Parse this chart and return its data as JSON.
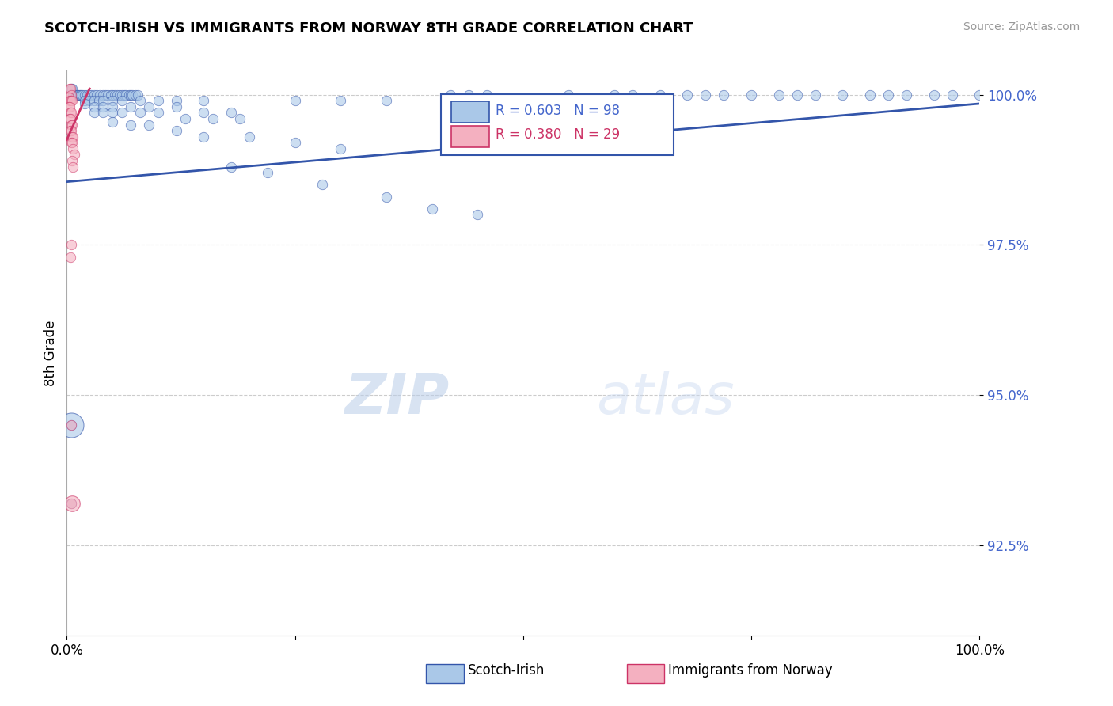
{
  "title": "SCOTCH-IRISH VS IMMIGRANTS FROM NORWAY 8TH GRADE CORRELATION CHART",
  "source_text": "Source: ZipAtlas.com",
  "ylabel": "8th Grade",
  "xlim": [
    0,
    1.0
  ],
  "ylim": [
    0.91,
    1.004
  ],
  "yticks": [
    0.925,
    0.95,
    0.975,
    1.0
  ],
  "ytick_labels": [
    "92.5%",
    "95.0%",
    "97.5%",
    "100.0%"
  ],
  "xticks": [
    0.0,
    0.25,
    0.5,
    0.75,
    1.0
  ],
  "xtick_labels": [
    "0.0%",
    "",
    "",
    "",
    "100.0%"
  ],
  "legend_blue_R": "0.603",
  "legend_blue_N": "98",
  "legend_pink_R": "0.380",
  "legend_pink_N": "29",
  "legend_label_blue": "Scotch-Irish",
  "legend_label_pink": "Immigrants from Norway",
  "blue_color": "#aac8e8",
  "pink_color": "#f4b0c0",
  "trend_blue": "#3355aa",
  "trend_pink": "#cc3366",
  "axis_color": "#4466cc",
  "grid_color": "#cccccc",
  "watermark_zip": "ZIP",
  "watermark_atlas": "atlas",
  "blue_scatter": [
    [
      0.005,
      1.001
    ],
    [
      0.006,
      1.001
    ],
    [
      0.007,
      1.0
    ],
    [
      0.008,
      1.0
    ],
    [
      0.01,
      1.0
    ],
    [
      0.012,
      1.0
    ],
    [
      0.013,
      1.0
    ],
    [
      0.014,
      1.0
    ],
    [
      0.015,
      1.0
    ],
    [
      0.017,
      1.0
    ],
    [
      0.02,
      1.0
    ],
    [
      0.022,
      1.0
    ],
    [
      0.025,
      1.0
    ],
    [
      0.027,
      1.0
    ],
    [
      0.03,
      1.0
    ],
    [
      0.033,
      1.0
    ],
    [
      0.036,
      1.0
    ],
    [
      0.04,
      1.0
    ],
    [
      0.042,
      1.0
    ],
    [
      0.045,
      1.0
    ],
    [
      0.048,
      1.0
    ],
    [
      0.05,
      1.0
    ],
    [
      0.053,
      1.0
    ],
    [
      0.055,
      1.0
    ],
    [
      0.058,
      1.0
    ],
    [
      0.06,
      1.0
    ],
    [
      0.063,
      1.0
    ],
    [
      0.065,
      1.0
    ],
    [
      0.068,
      1.0
    ],
    [
      0.07,
      1.0
    ],
    [
      0.072,
      1.0
    ],
    [
      0.075,
      1.0
    ],
    [
      0.078,
      1.0
    ],
    [
      0.42,
      1.0
    ],
    [
      0.44,
      1.0
    ],
    [
      0.46,
      1.0
    ],
    [
      0.55,
      1.0
    ],
    [
      0.6,
      1.0
    ],
    [
      0.62,
      1.0
    ],
    [
      0.65,
      1.0
    ],
    [
      0.68,
      1.0
    ],
    [
      0.7,
      1.0
    ],
    [
      0.72,
      1.0
    ],
    [
      0.75,
      1.0
    ],
    [
      0.78,
      1.0
    ],
    [
      0.8,
      1.0
    ],
    [
      0.82,
      1.0
    ],
    [
      0.85,
      1.0
    ],
    [
      0.88,
      1.0
    ],
    [
      0.9,
      1.0
    ],
    [
      0.92,
      1.0
    ],
    [
      0.95,
      1.0
    ],
    [
      0.97,
      1.0
    ],
    [
      1.0,
      1.0
    ],
    [
      0.02,
      0.999
    ],
    [
      0.025,
      0.999
    ],
    [
      0.03,
      0.999
    ],
    [
      0.035,
      0.999
    ],
    [
      0.04,
      0.999
    ],
    [
      0.05,
      0.999
    ],
    [
      0.06,
      0.999
    ],
    [
      0.08,
      0.999
    ],
    [
      0.1,
      0.999
    ],
    [
      0.12,
      0.999
    ],
    [
      0.15,
      0.999
    ],
    [
      0.25,
      0.999
    ],
    [
      0.3,
      0.999
    ],
    [
      0.35,
      0.999
    ],
    [
      0.02,
      0.9985
    ],
    [
      0.03,
      0.998
    ],
    [
      0.04,
      0.998
    ],
    [
      0.05,
      0.998
    ],
    [
      0.07,
      0.998
    ],
    [
      0.09,
      0.998
    ],
    [
      0.12,
      0.998
    ],
    [
      0.15,
      0.997
    ],
    [
      0.18,
      0.997
    ],
    [
      0.03,
      0.997
    ],
    [
      0.04,
      0.997
    ],
    [
      0.05,
      0.997
    ],
    [
      0.06,
      0.997
    ],
    [
      0.08,
      0.997
    ],
    [
      0.1,
      0.997
    ],
    [
      0.13,
      0.996
    ],
    [
      0.16,
      0.996
    ],
    [
      0.19,
      0.996
    ],
    [
      0.05,
      0.9955
    ],
    [
      0.07,
      0.995
    ],
    [
      0.09,
      0.995
    ],
    [
      0.12,
      0.994
    ],
    [
      0.15,
      0.993
    ],
    [
      0.2,
      0.993
    ],
    [
      0.25,
      0.992
    ],
    [
      0.3,
      0.991
    ],
    [
      0.18,
      0.988
    ],
    [
      0.22,
      0.987
    ],
    [
      0.28,
      0.985
    ],
    [
      0.35,
      0.983
    ],
    [
      0.4,
      0.981
    ],
    [
      0.45,
      0.98
    ],
    [
      0.005,
      0.945
    ],
    [
      0.005,
      0.932
    ]
  ],
  "pink_scatter": [
    [
      0.003,
      1.001
    ],
    [
      0.004,
      1.001
    ],
    [
      0.005,
      1.0
    ],
    [
      0.002,
      0.9995
    ],
    [
      0.003,
      0.999
    ],
    [
      0.004,
      0.999
    ],
    [
      0.005,
      0.999
    ],
    [
      0.006,
      0.999
    ],
    [
      0.002,
      0.998
    ],
    [
      0.003,
      0.998
    ],
    [
      0.004,
      0.997
    ],
    [
      0.005,
      0.997
    ],
    [
      0.003,
      0.996
    ],
    [
      0.004,
      0.996
    ],
    [
      0.005,
      0.995
    ],
    [
      0.006,
      0.995
    ],
    [
      0.004,
      0.994
    ],
    [
      0.005,
      0.994
    ],
    [
      0.006,
      0.993
    ],
    [
      0.007,
      0.993
    ],
    [
      0.005,
      0.992
    ],
    [
      0.006,
      0.992
    ],
    [
      0.007,
      0.991
    ],
    [
      0.008,
      0.99
    ],
    [
      0.006,
      0.989
    ],
    [
      0.007,
      0.988
    ],
    [
      0.005,
      0.975
    ],
    [
      0.004,
      0.973
    ],
    [
      0.005,
      0.945
    ],
    [
      0.005,
      0.932
    ]
  ],
  "blue_trend_x": [
    0.0,
    1.0
  ],
  "blue_trend_y": [
    0.9855,
    0.9985
  ],
  "pink_trend_x": [
    0.0,
    0.025
  ],
  "pink_trend_y": [
    0.9925,
    1.001
  ]
}
